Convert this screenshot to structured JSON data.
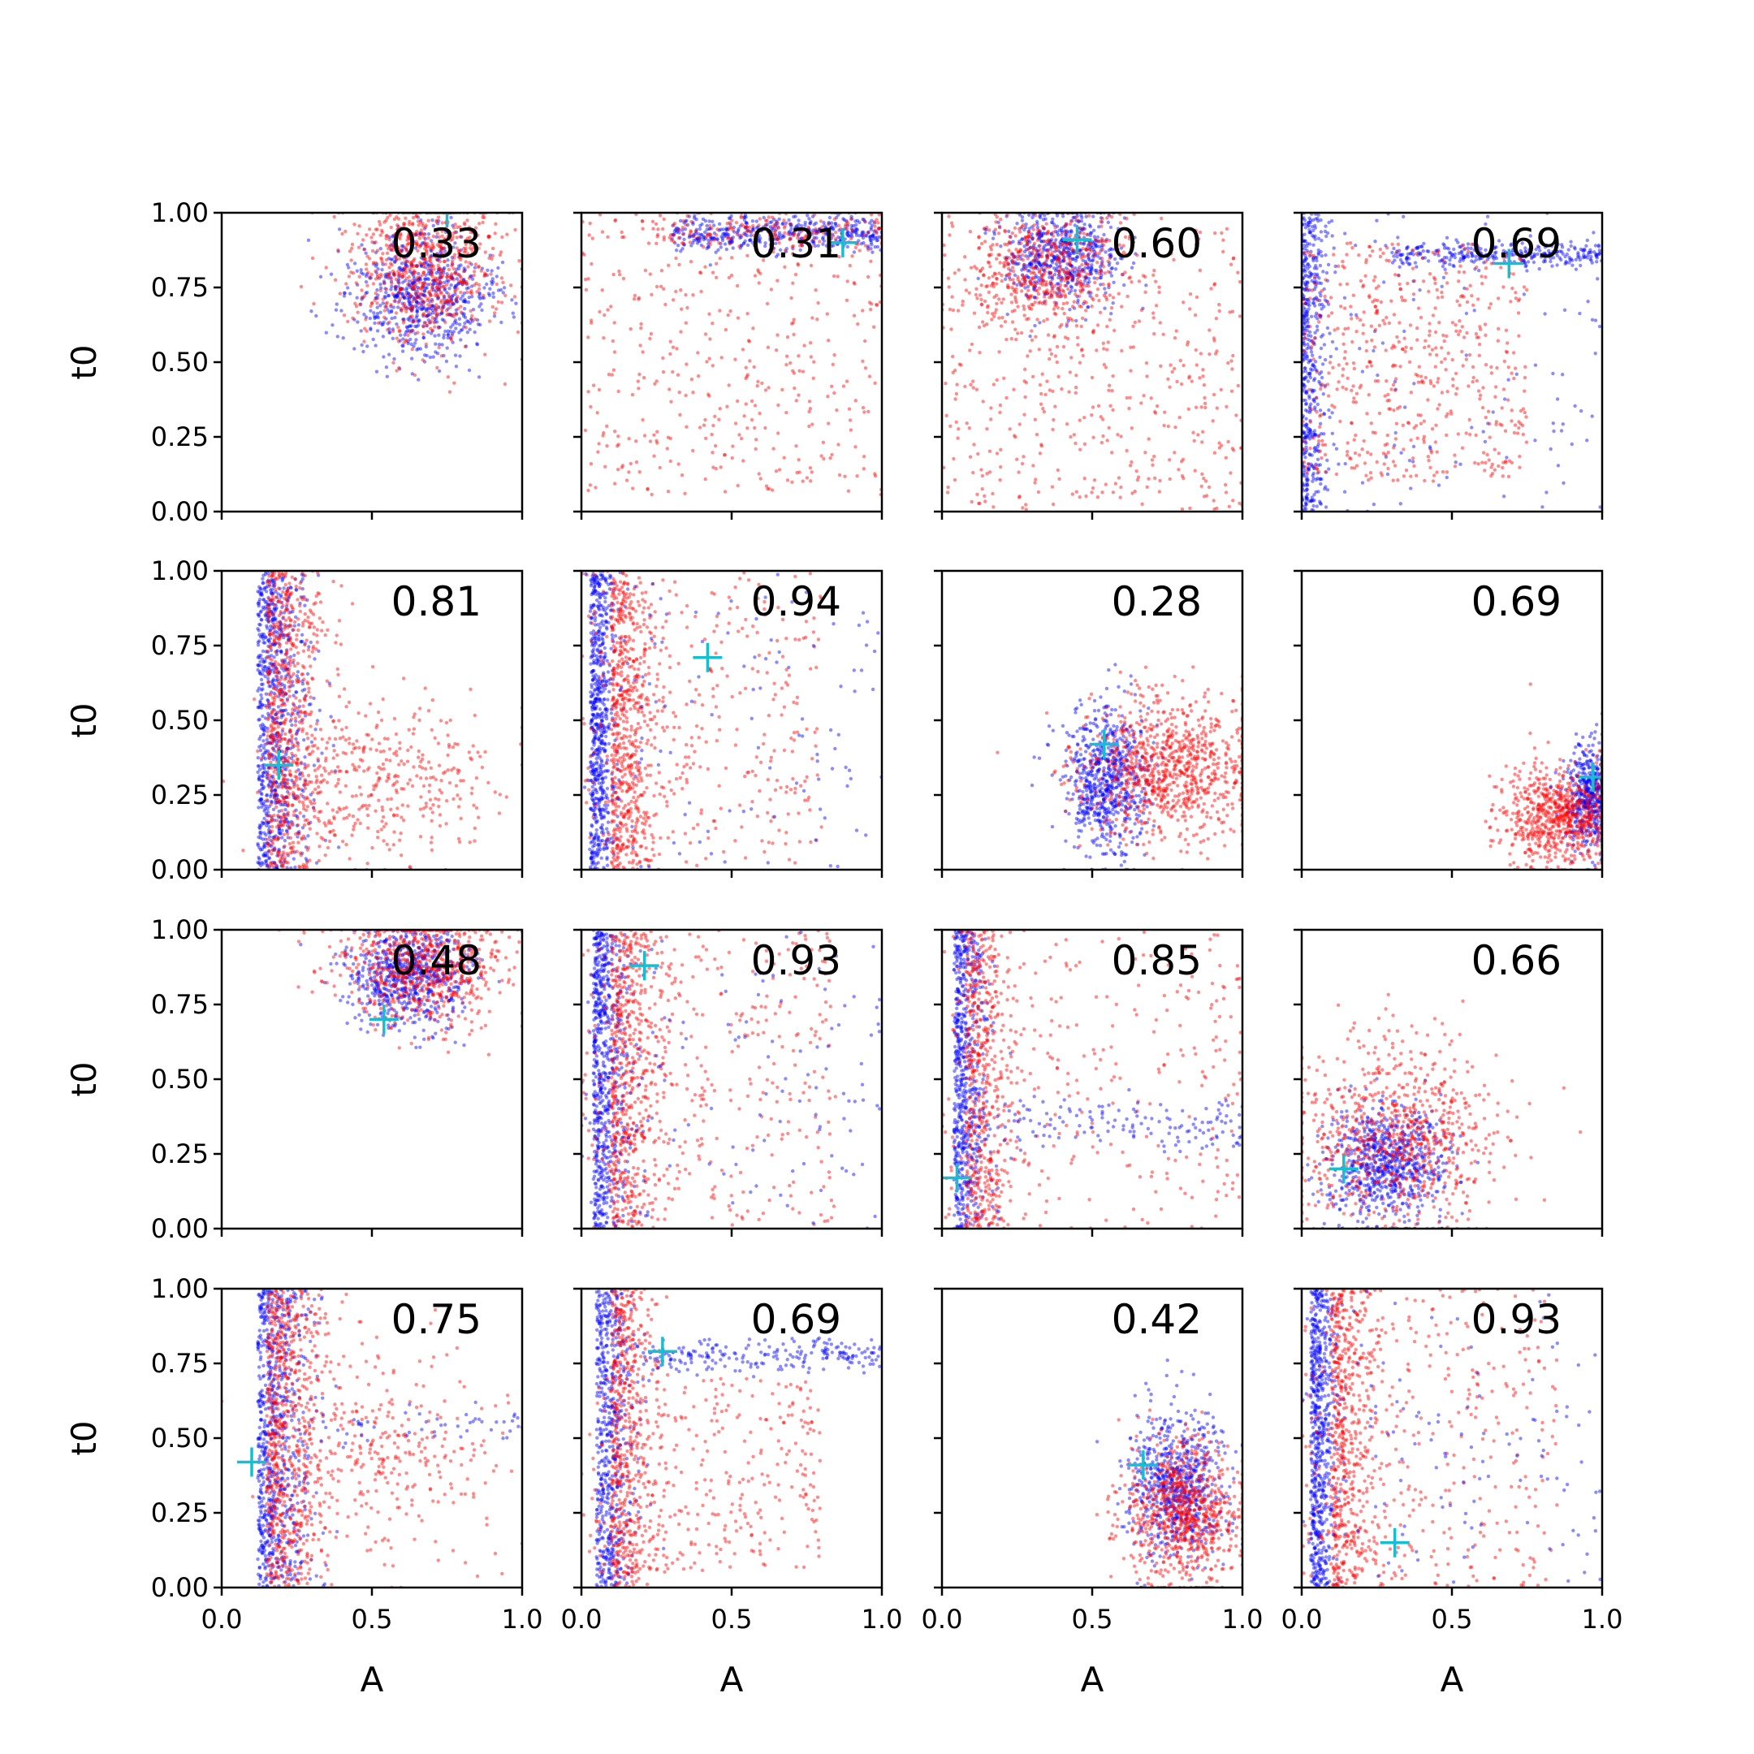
{
  "colors": {
    "series_a": "#0000ff",
    "series_b": "#ff0000",
    "marker": "#17becf"
  },
  "chart_data": {
    "type": "scatter",
    "layout": "4x4 grid of panels, shared axes",
    "xlabel": "A",
    "ylabel": "t0",
    "xlim": [
      0,
      1
    ],
    "ylim": [
      0,
      1
    ],
    "x_ticks": [
      "0.0",
      "0.5",
      "1.0"
    ],
    "y_ticks": [
      "0.00",
      "0.25",
      "0.50",
      "0.75",
      "1.00"
    ],
    "grid": false,
    "series": [
      {
        "color": "blue",
        "marker": "small dot"
      },
      {
        "color": "red",
        "marker": "small dot"
      },
      {
        "color": "cyan",
        "marker": "+ (single point)"
      }
    ],
    "panels": [
      {
        "annotation": "0.33",
        "cross": [
          0.75,
          1.0
        ],
        "clouds": [
          {
            "s": "blue",
            "kind": "g",
            "cx": 0.66,
            "cy": 0.72,
            "sx": 0.12,
            "sy": 0.11,
            "n": 700
          },
          {
            "s": "red",
            "kind": "g",
            "cx": 0.68,
            "cy": 0.82,
            "sx": 0.13,
            "sy": 0.13,
            "n": 700
          }
        ]
      },
      {
        "annotation": "0.31",
        "cross": [
          0.87,
          0.9
        ],
        "clouds": [
          {
            "s": "blue",
            "kind": "band",
            "x0": 0.3,
            "x1": 1.0,
            "yc": 0.93,
            "sy": 0.03,
            "n": 450
          },
          {
            "s": "red",
            "kind": "u",
            "x0": 0.0,
            "x1": 1.0,
            "y0": 0.05,
            "y1": 1.0,
            "n": 420
          },
          {
            "s": "red",
            "kind": "band",
            "x0": 0.2,
            "x1": 1.0,
            "yc": 0.94,
            "sy": 0.03,
            "n": 150
          }
        ]
      },
      {
        "annotation": "0.60",
        "cross": [
          0.45,
          0.91
        ],
        "clouds": [
          {
            "s": "blue",
            "kind": "g",
            "cx": 0.4,
            "cy": 0.86,
            "sx": 0.1,
            "sy": 0.08,
            "n": 600
          },
          {
            "s": "red",
            "kind": "g",
            "cx": 0.35,
            "cy": 0.8,
            "sx": 0.12,
            "sy": 0.09,
            "n": 450
          },
          {
            "s": "red",
            "kind": "u",
            "x0": 0.0,
            "x1": 1.0,
            "y0": 0.0,
            "y1": 1.0,
            "n": 520
          }
        ]
      },
      {
        "annotation": "0.69",
        "cross": [
          0.69,
          0.83
        ],
        "clouds": [
          {
            "s": "blue",
            "kind": "band",
            "x0": 0.3,
            "x1": 1.0,
            "yc": 0.86,
            "sy": 0.02,
            "n": 300
          },
          {
            "s": "blue",
            "kind": "strip",
            "xc": 0.0,
            "sx": 0.04,
            "n": 500
          },
          {
            "s": "blue",
            "kind": "u",
            "x0": 0.0,
            "x1": 1.0,
            "y0": 0.0,
            "y1": 1.0,
            "n": 120
          },
          {
            "s": "red",
            "kind": "u",
            "x0": 0.0,
            "x1": 0.75,
            "y0": 0.1,
            "y1": 0.9,
            "n": 550
          }
        ]
      },
      {
        "annotation": "0.81",
        "cross": [
          0.19,
          0.35
        ],
        "clouds": [
          {
            "s": "blue",
            "kind": "strip",
            "xc": 0.12,
            "sx": 0.08,
            "n": 800
          },
          {
            "s": "red",
            "kind": "strip",
            "xc": 0.15,
            "sx": 0.1,
            "n": 700
          },
          {
            "s": "red",
            "kind": "g",
            "cx": 0.55,
            "cy": 0.3,
            "sx": 0.18,
            "sy": 0.13,
            "n": 350
          }
        ]
      },
      {
        "annotation": "0.94",
        "cross": [
          0.42,
          0.71
        ],
        "clouds": [
          {
            "s": "blue",
            "kind": "strip",
            "xc": 0.03,
            "sx": 0.04,
            "n": 650
          },
          {
            "s": "red",
            "kind": "strip",
            "xc": 0.1,
            "sx": 0.07,
            "n": 600
          },
          {
            "s": "red",
            "kind": "u",
            "x0": 0.0,
            "x1": 0.8,
            "y0": 0.0,
            "y1": 1.0,
            "n": 350
          },
          {
            "s": "blue",
            "kind": "u",
            "x0": 0.0,
            "x1": 1.0,
            "y0": 0.0,
            "y1": 1.0,
            "n": 120
          }
        ]
      },
      {
        "annotation": "0.28",
        "cross": [
          0.54,
          0.42
        ],
        "clouds": [
          {
            "s": "blue",
            "kind": "g",
            "cx": 0.55,
            "cy": 0.3,
            "sx": 0.07,
            "sy": 0.12,
            "n": 700
          },
          {
            "s": "red",
            "kind": "g",
            "cx": 0.76,
            "cy": 0.34,
            "sx": 0.15,
            "sy": 0.12,
            "n": 900
          }
        ]
      },
      {
        "annotation": "0.69",
        "cross": [
          0.97,
          0.31
        ],
        "clouds": [
          {
            "s": "blue",
            "kind": "g",
            "cx": 0.96,
            "cy": 0.24,
            "sx": 0.04,
            "sy": 0.09,
            "n": 500
          },
          {
            "s": "red",
            "kind": "g",
            "cx": 0.86,
            "cy": 0.18,
            "sx": 0.1,
            "sy": 0.08,
            "n": 750
          }
        ]
      },
      {
        "annotation": "0.48",
        "cross": [
          0.54,
          0.7
        ],
        "clouds": [
          {
            "s": "blue",
            "kind": "g",
            "cx": 0.62,
            "cy": 0.84,
            "sx": 0.1,
            "sy": 0.09,
            "n": 700
          },
          {
            "s": "red",
            "kind": "g",
            "cx": 0.67,
            "cy": 0.88,
            "sx": 0.14,
            "sy": 0.1,
            "n": 700
          }
        ]
      },
      {
        "annotation": "0.93",
        "cross": [
          0.21,
          0.88
        ],
        "clouds": [
          {
            "s": "blue",
            "kind": "strip",
            "xc": 0.04,
            "sx": 0.05,
            "n": 650
          },
          {
            "s": "red",
            "kind": "strip",
            "xc": 0.1,
            "sx": 0.08,
            "n": 550
          },
          {
            "s": "red",
            "kind": "u",
            "x0": 0.0,
            "x1": 0.85,
            "y0": 0.0,
            "y1": 1.0,
            "n": 350
          },
          {
            "s": "blue",
            "kind": "u",
            "x0": 0.0,
            "x1": 1.0,
            "y0": 0.0,
            "y1": 1.0,
            "n": 150
          }
        ]
      },
      {
        "annotation": "0.85",
        "cross": [
          0.05,
          0.17
        ],
        "clouds": [
          {
            "s": "blue",
            "kind": "strip",
            "xc": 0.04,
            "sx": 0.05,
            "n": 650
          },
          {
            "s": "red",
            "kind": "strip",
            "xc": 0.08,
            "sx": 0.07,
            "n": 500
          },
          {
            "s": "red",
            "kind": "u",
            "x0": 0.0,
            "x1": 1.0,
            "y0": 0.0,
            "y1": 1.0,
            "n": 300
          },
          {
            "s": "blue",
            "kind": "band",
            "x0": 0.1,
            "x1": 1.0,
            "yc": 0.35,
            "sy": 0.05,
            "n": 150
          }
        ]
      },
      {
        "annotation": "0.66",
        "cross": [
          0.14,
          0.2
        ],
        "clouds": [
          {
            "s": "blue",
            "kind": "g",
            "cx": 0.28,
            "cy": 0.22,
            "sx": 0.1,
            "sy": 0.1,
            "n": 750
          },
          {
            "s": "red",
            "kind": "g",
            "cx": 0.32,
            "cy": 0.3,
            "sx": 0.17,
            "sy": 0.16,
            "n": 800
          }
        ]
      },
      {
        "annotation": "0.75",
        "cross": [
          0.1,
          0.42
        ],
        "clouds": [
          {
            "s": "blue",
            "kind": "strip",
            "xc": 0.12,
            "sx": 0.08,
            "n": 750
          },
          {
            "s": "red",
            "kind": "strip",
            "xc": 0.15,
            "sx": 0.09,
            "n": 700
          },
          {
            "s": "red",
            "kind": "g",
            "cx": 0.55,
            "cy": 0.45,
            "sx": 0.18,
            "sy": 0.18,
            "n": 300
          },
          {
            "s": "blue",
            "kind": "band",
            "x0": 0.3,
            "x1": 1.0,
            "yc": 0.55,
            "sy": 0.03,
            "n": 50
          }
        ]
      },
      {
        "annotation": "0.69",
        "cross": [
          0.27,
          0.79
        ],
        "clouds": [
          {
            "s": "blue",
            "kind": "band",
            "x0": 0.2,
            "x1": 1.0,
            "yc": 0.78,
            "sy": 0.03,
            "n": 220
          },
          {
            "s": "blue",
            "kind": "strip",
            "xc": 0.05,
            "sx": 0.06,
            "n": 600
          },
          {
            "s": "red",
            "kind": "strip",
            "xc": 0.1,
            "sx": 0.07,
            "n": 500
          },
          {
            "s": "red",
            "kind": "u",
            "x0": 0.0,
            "x1": 0.8,
            "y0": 0.05,
            "y1": 0.7,
            "n": 350
          }
        ]
      },
      {
        "annotation": "0.42",
        "cross": [
          0.67,
          0.41
        ],
        "clouds": [
          {
            "s": "blue",
            "kind": "g",
            "cx": 0.78,
            "cy": 0.34,
            "sx": 0.08,
            "sy": 0.12,
            "n": 700
          },
          {
            "s": "red",
            "kind": "g",
            "cx": 0.8,
            "cy": 0.25,
            "sx": 0.1,
            "sy": 0.12,
            "n": 800
          }
        ]
      },
      {
        "annotation": "0.93",
        "cross": [
          0.31,
          0.15
        ],
        "clouds": [
          {
            "s": "blue",
            "kind": "strip",
            "xc": 0.03,
            "sx": 0.04,
            "n": 650
          },
          {
            "s": "red",
            "kind": "strip",
            "xc": 0.1,
            "sx": 0.08,
            "n": 550
          },
          {
            "s": "red",
            "kind": "u",
            "x0": 0.0,
            "x1": 0.85,
            "y0": 0.0,
            "y1": 1.0,
            "n": 350
          },
          {
            "s": "blue",
            "kind": "u",
            "x0": 0.0,
            "x1": 1.0,
            "y0": 0.0,
            "y1": 1.0,
            "n": 120
          }
        ]
      }
    ]
  }
}
